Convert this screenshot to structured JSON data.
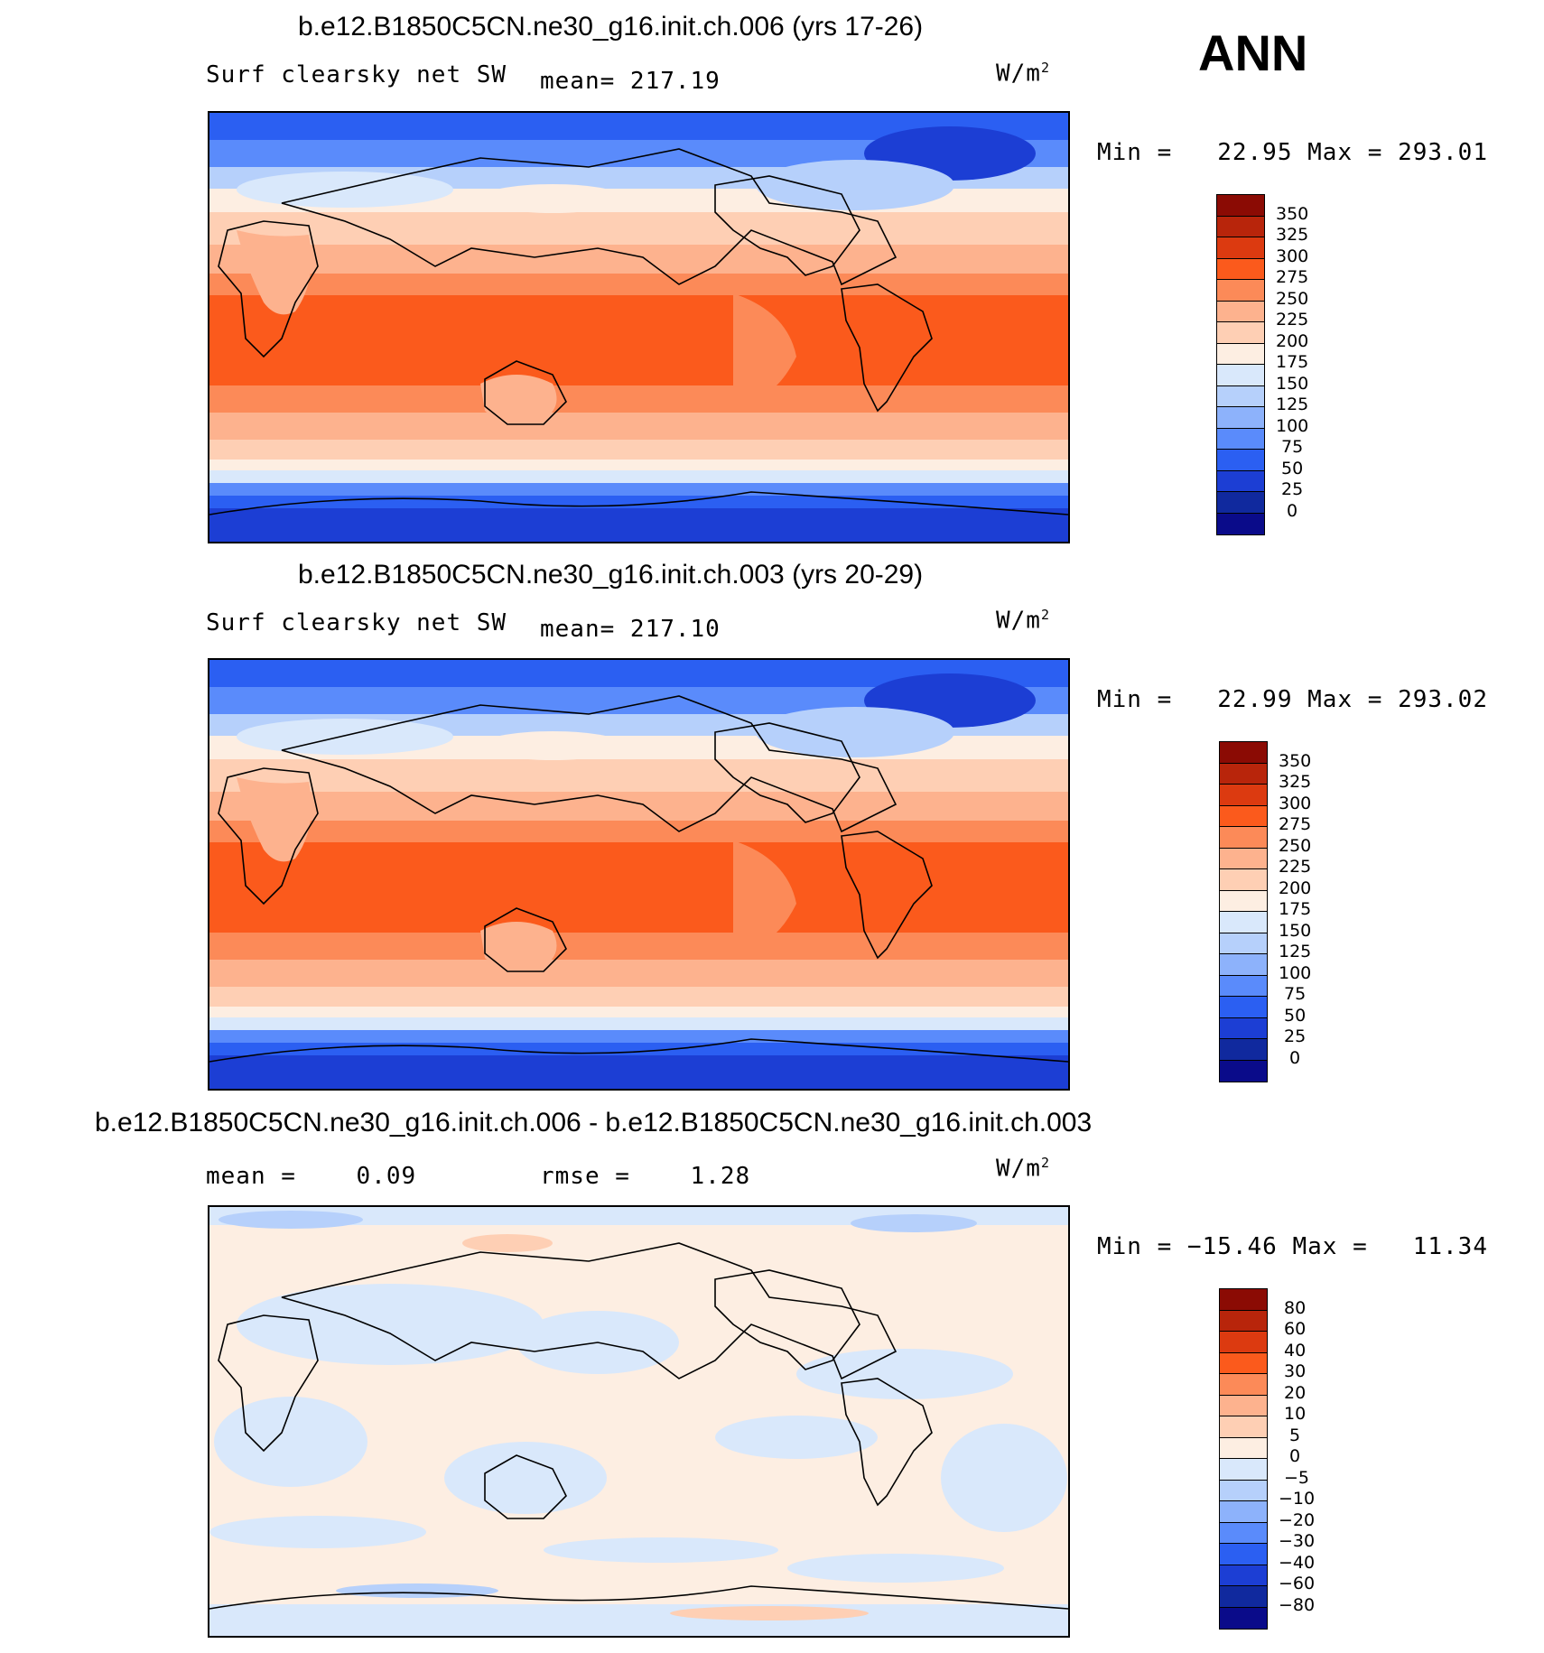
{
  "season": "ANN",
  "panels": [
    {
      "title": "b.e12.B1850C5CN.ne30_g16.init.ch.006 (yrs 17-26)",
      "left_label": "Surf clearsky net SW",
      "mid_label": "mean= 217.19",
      "unit": "W/m",
      "unit_sup": "2",
      "minmax": "Min =   22.95 Max = 293.01",
      "colorbar_levels": [
        "350",
        "325",
        "300",
        "275",
        "250",
        "225",
        "200",
        "175",
        "150",
        "125",
        "100",
        "75",
        "50",
        "25",
        "0"
      ],
      "colorbar_colors": [
        "#8b0b04",
        "#b8250b",
        "#dc3a10",
        "#fb5a1c",
        "#fc8a58",
        "#fdb28e",
        "#fecfb4",
        "#fdeee2",
        "#d9e8fb",
        "#b6d0fb",
        "#8db2fb",
        "#5a8bfb",
        "#2b5ff2",
        "#1c3ed4",
        "#10299e",
        "#0a0b8a"
      ]
    },
    {
      "title": "b.e12.B1850C5CN.ne30_g16.init.ch.003 (yrs 20-29)",
      "left_label": "Surf clearsky net SW",
      "mid_label": "mean= 217.10",
      "unit": "W/m",
      "unit_sup": "2",
      "minmax": "Min =   22.99 Max = 293.02",
      "colorbar_levels": [
        "350",
        "325",
        "300",
        "275",
        "250",
        "225",
        "200",
        "175",
        "150",
        "125",
        "100",
        "75",
        "50",
        "25",
        "0"
      ],
      "colorbar_colors": [
        "#8b0b04",
        "#b8250b",
        "#dc3a10",
        "#fb5a1c",
        "#fc8a58",
        "#fdb28e",
        "#fecfb4",
        "#fdeee2",
        "#d9e8fb",
        "#b6d0fb",
        "#8db2fb",
        "#5a8bfb",
        "#2b5ff2",
        "#1c3ed4",
        "#10299e",
        "#0a0b8a"
      ]
    },
    {
      "title": "b.e12.B1850C5CN.ne30_g16.init.ch.006 - b.e12.B1850C5CN.ne30_g16.init.ch.003",
      "left_label": "mean =    0.09",
      "mid_label": "rmse =    1.28",
      "unit": "W/m",
      "unit_sup": "2",
      "minmax": "Min = −15.46 Max =   11.34",
      "colorbar_levels": [
        "80",
        "60",
        "40",
        "30",
        "20",
        "10",
        "5",
        "0",
        "−5",
        "−10",
        "−20",
        "−30",
        "−40",
        "−60",
        "−80"
      ],
      "colorbar_colors": [
        "#8b0b04",
        "#b8250b",
        "#dc3a10",
        "#fb5a1c",
        "#fc8a58",
        "#fdb28e",
        "#fecfb4",
        "#fdeee2",
        "#d9e8fb",
        "#b6d0fb",
        "#8db2fb",
        "#5a8bfb",
        "#2b5ff2",
        "#1c3ed4",
        "#10299e",
        "#0a0b8a"
      ]
    }
  ]
}
